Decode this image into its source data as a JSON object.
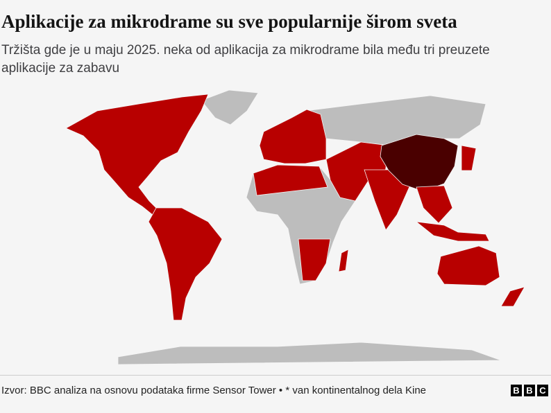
{
  "header": {
    "title": "Aplikacije za mikrodrame su sve popularnije širom sveta",
    "subtitle": "Tržišta gde je u maju 2025. neka od aplikacija za mikrodrame bila među tri preuzete aplikacije za zabavu"
  },
  "footer": {
    "source": "Izvor: BBC analiza na osnovu podataka firme Sensor Tower • * van kontinentalnog dela Kine",
    "logo": [
      "B",
      "B",
      "C"
    ]
  }
}
